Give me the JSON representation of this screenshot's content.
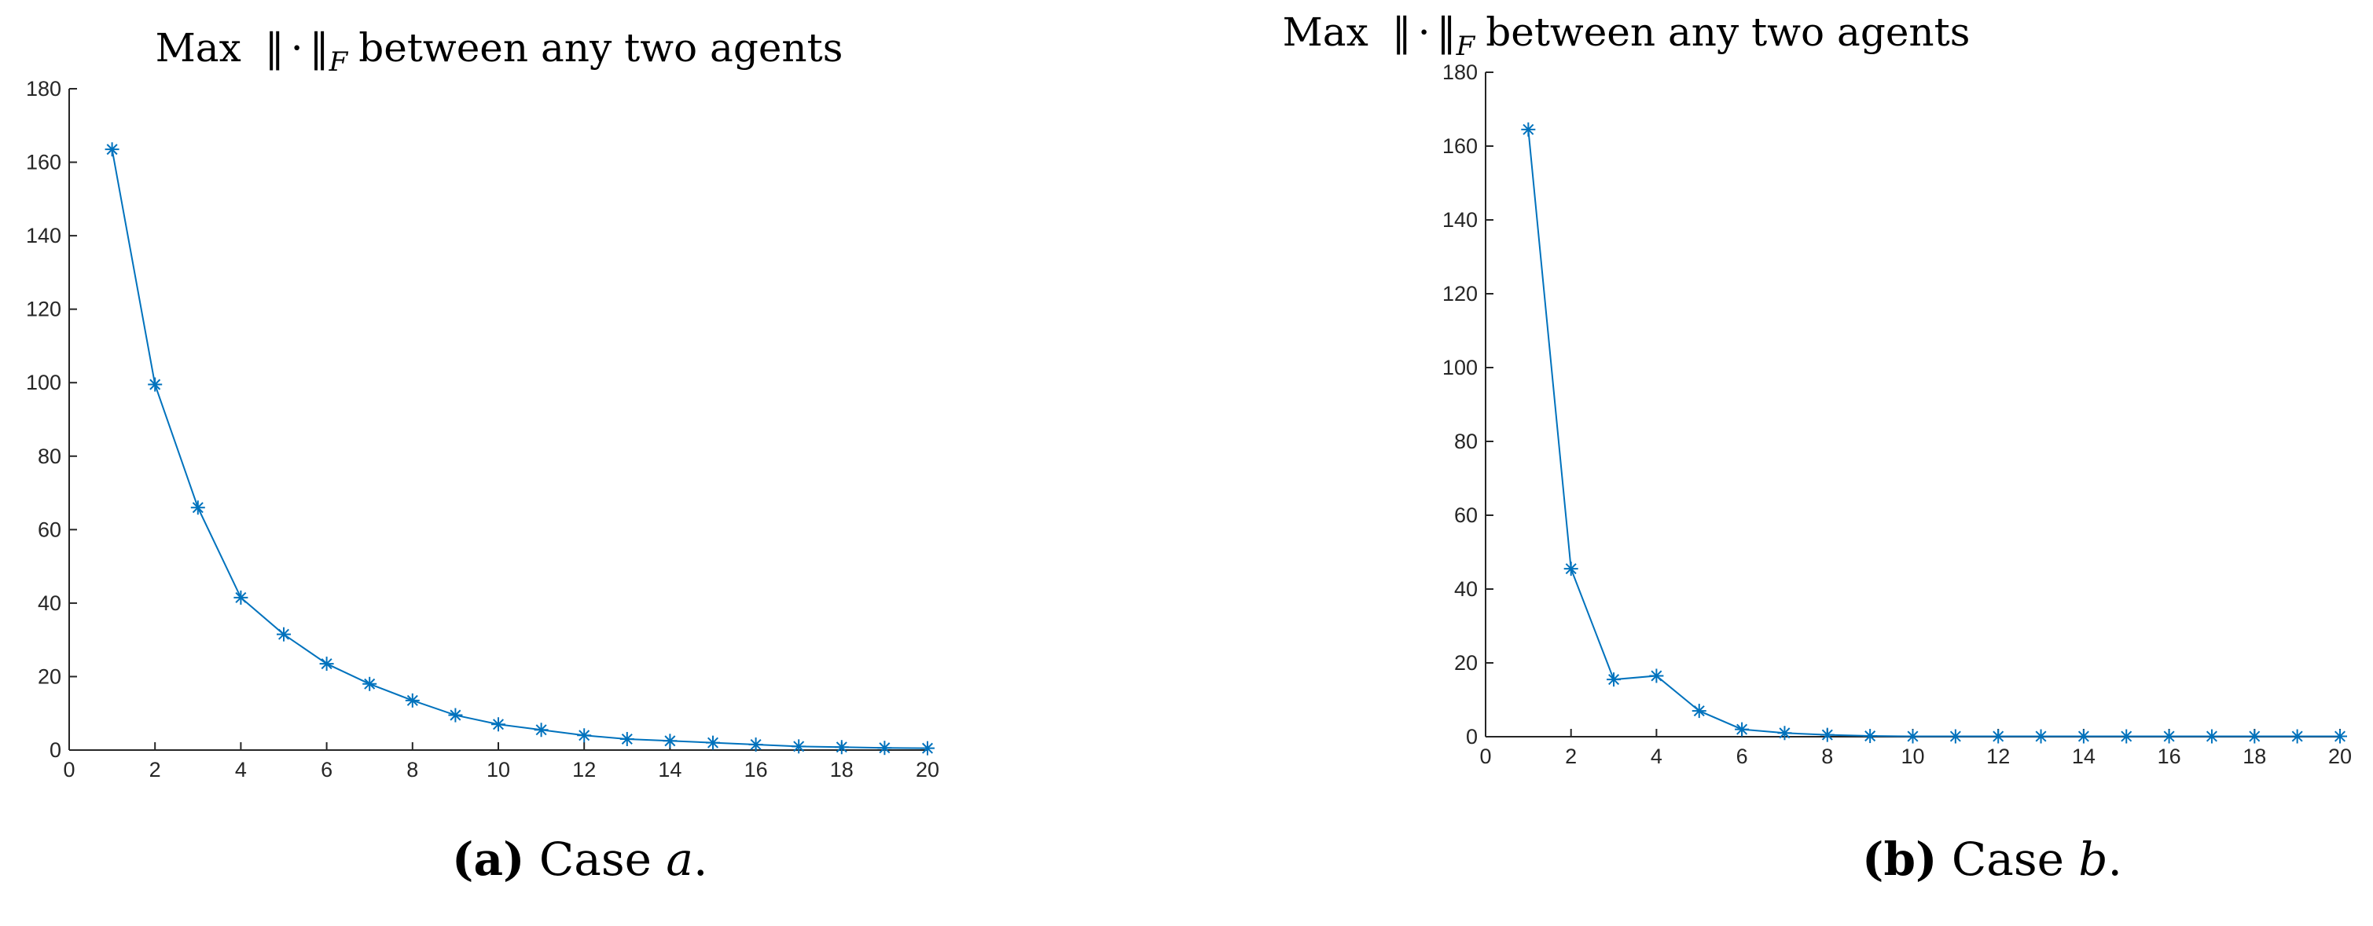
{
  "chart_data": [
    {
      "type": "line",
      "title": "Max ‖ · ‖F between any two agents",
      "caption": {
        "label": "(a)",
        "text": " Case ",
        "case": "a",
        "end": "."
      },
      "x": [
        1,
        2,
        3,
        4,
        5,
        6,
        7,
        8,
        9,
        10,
        11,
        12,
        13,
        14,
        15,
        16,
        17,
        18,
        19,
        20
      ],
      "series": [
        {
          "values": [
            163.5,
            99.5,
            66,
            41.5,
            31.5,
            23.5,
            18,
            13.5,
            9.5,
            7,
            5.5,
            4,
            3,
            2.5,
            2,
            1.5,
            1,
            0.8,
            0.6,
            0.5
          ]
        }
      ],
      "xlim": [
        0,
        20
      ],
      "ylim": [
        0,
        180
      ],
      "xticks": [
        0,
        2,
        4,
        6,
        8,
        10,
        12,
        14,
        16,
        18,
        20
      ],
      "yticks": [
        0,
        20,
        40,
        60,
        80,
        100,
        120,
        140,
        160,
        180
      ],
      "grid": false,
      "marker": "asterisk",
      "color": "#0072BD"
    },
    {
      "type": "line",
      "title": "Max ‖ · ‖F between any two agents",
      "caption": {
        "label": "(b)",
        "text": " Case ",
        "case": "b",
        "end": "."
      },
      "x": [
        1,
        2,
        3,
        4,
        5,
        6,
        7,
        8,
        9,
        10,
        11,
        12,
        13,
        14,
        15,
        16,
        17,
        18,
        19,
        20
      ],
      "series": [
        {
          "values": [
            164.5,
            45.5,
            15.5,
            16.5,
            7,
            2,
            1,
            0.5,
            0.2,
            0.1,
            0.1,
            0.1,
            0.1,
            0.1,
            0.1,
            0.1,
            0.1,
            0.1,
            0.1,
            0.1
          ]
        }
      ],
      "xlim": [
        0,
        20
      ],
      "ylim": [
        0,
        180
      ],
      "xticks": [
        0,
        2,
        4,
        6,
        8,
        10,
        12,
        14,
        16,
        18,
        20
      ],
      "yticks": [
        0,
        20,
        40,
        60,
        80,
        100,
        120,
        140,
        160,
        180
      ],
      "grid": false,
      "marker": "asterisk",
      "color": "#0072BD"
    }
  ]
}
